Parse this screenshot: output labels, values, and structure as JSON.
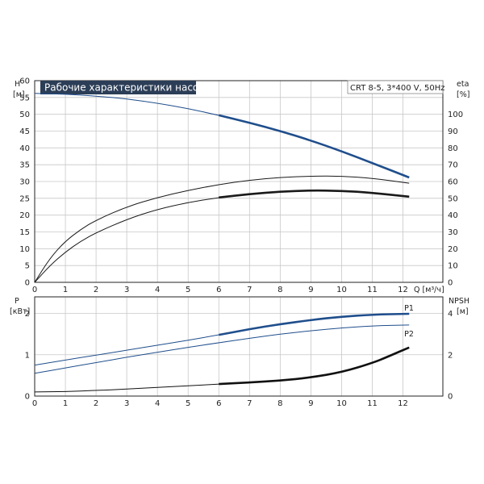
{
  "chart_data": [
    {
      "type": "line",
      "title": "Рабочие характеристики насоса",
      "model": "CRT 8-5, 3*400 V, 50Hz",
      "xlabel": "Q [м³/ч]",
      "x_ticks": [
        "0",
        "1",
        "2",
        "3",
        "4",
        "5",
        "6",
        "7",
        "8",
        "9",
        "10",
        "11",
        "12"
      ],
      "xlim": [
        0,
        13.3
      ],
      "left_axis": {
        "label_top": "H",
        "label_unit": "[м]",
        "ylim": [
          0,
          60
        ],
        "ticks": [
          "0",
          "5",
          "10",
          "15",
          "20",
          "25",
          "30",
          "35",
          "40",
          "45",
          "50",
          "55",
          "60"
        ]
      },
      "right_axis": {
        "label_top": "eta",
        "label_unit": "[%]",
        "ylim": [
          0,
          120
        ],
        "ticks": [
          "0",
          "10",
          "20",
          "30",
          "40",
          "50",
          "60",
          "70",
          "80",
          "90",
          "100"
        ]
      },
      "grid": true,
      "series": [
        {
          "key": "H",
          "axis": "left",
          "color": "#1f4e8c",
          "x": [
            0,
            1,
            2,
            3,
            4,
            5,
            6,
            7,
            8,
            9,
            10,
            11,
            12.2
          ],
          "y": [
            56.2,
            56.0,
            55.4,
            54.6,
            53.3,
            51.7,
            49.7,
            47.5,
            45.0,
            42.2,
            39.0,
            35.5,
            31.2
          ],
          "bold_from_x": 6
        },
        {
          "key": "eta_upper",
          "axis": "right",
          "color": "#1a1a1a",
          "x": [
            0,
            0.5,
            1,
            1.5,
            2,
            3,
            4,
            5,
            6,
            7,
            8,
            9,
            10,
            11,
            12.2
          ],
          "y": [
            0,
            14.5,
            24.5,
            31.5,
            37,
            45,
            50.5,
            54.7,
            58.2,
            60.8,
            62.5,
            63.2,
            63.2,
            62.0,
            59.0
          ],
          "bold_from_x": null
        },
        {
          "key": "eta_lower",
          "axis": "right",
          "color": "#1a1a1a",
          "x": [
            0,
            0.5,
            1,
            1.5,
            2,
            3,
            4,
            5,
            6,
            7,
            8,
            9,
            10,
            11,
            12.2
          ],
          "y": [
            0,
            10,
            18,
            24.5,
            29.5,
            37.5,
            43.5,
            47.5,
            50.5,
            52.5,
            54.0,
            54.7,
            54.5,
            53.3,
            51.0
          ],
          "bold_from_x": 6
        }
      ]
    },
    {
      "type": "line",
      "xlabel": "",
      "x_ticks": [
        "0",
        "1",
        "2",
        "3",
        "4",
        "5",
        "6",
        "7",
        "8",
        "9",
        "10",
        "11",
        "12"
      ],
      "xlim": [
        0,
        13.3
      ],
      "left_axis": {
        "label_top": "P",
        "label_unit": "[кВт]",
        "ylim": [
          0,
          2.4
        ],
        "ticks": [
          "0",
          "1",
          "2"
        ]
      },
      "right_axis": {
        "label_top": "NPSH",
        "label_unit": "[м]",
        "ylim": [
          0,
          4.8
        ],
        "ticks": [
          "0",
          "2",
          "4"
        ]
      },
      "grid": true,
      "series": [
        {
          "key": "P1",
          "name": "P1",
          "axis": "left",
          "color": "#1f4e8c",
          "x": [
            0,
            1,
            2,
            3,
            4,
            5,
            6,
            7,
            8,
            9,
            10,
            11,
            12.2
          ],
          "y": [
            0.75,
            0.87,
            0.99,
            1.11,
            1.23,
            1.35,
            1.48,
            1.62,
            1.74,
            1.84,
            1.92,
            1.97,
            1.99
          ],
          "bold_from_x": 6
        },
        {
          "key": "P2",
          "name": "P2",
          "axis": "left",
          "color": "#1f4e8c",
          "x": [
            0,
            1,
            2,
            3,
            4,
            5,
            6,
            7,
            8,
            9,
            10,
            11,
            12.2
          ],
          "y": [
            0.55,
            0.68,
            0.81,
            0.94,
            1.06,
            1.18,
            1.29,
            1.4,
            1.5,
            1.58,
            1.65,
            1.7,
            1.72
          ],
          "bold_from_x": null
        },
        {
          "key": "NPSH",
          "axis": "right",
          "color": "#111111",
          "x": [
            0,
            1,
            2,
            3,
            4,
            5,
            6,
            7,
            8,
            9,
            10,
            11,
            11.5,
            12.2
          ],
          "y": [
            0.2,
            0.22,
            0.27,
            0.34,
            0.42,
            0.5,
            0.58,
            0.66,
            0.75,
            0.9,
            1.15,
            1.6,
            1.9,
            2.35
          ],
          "bold_from_x": 6
        }
      ]
    }
  ]
}
